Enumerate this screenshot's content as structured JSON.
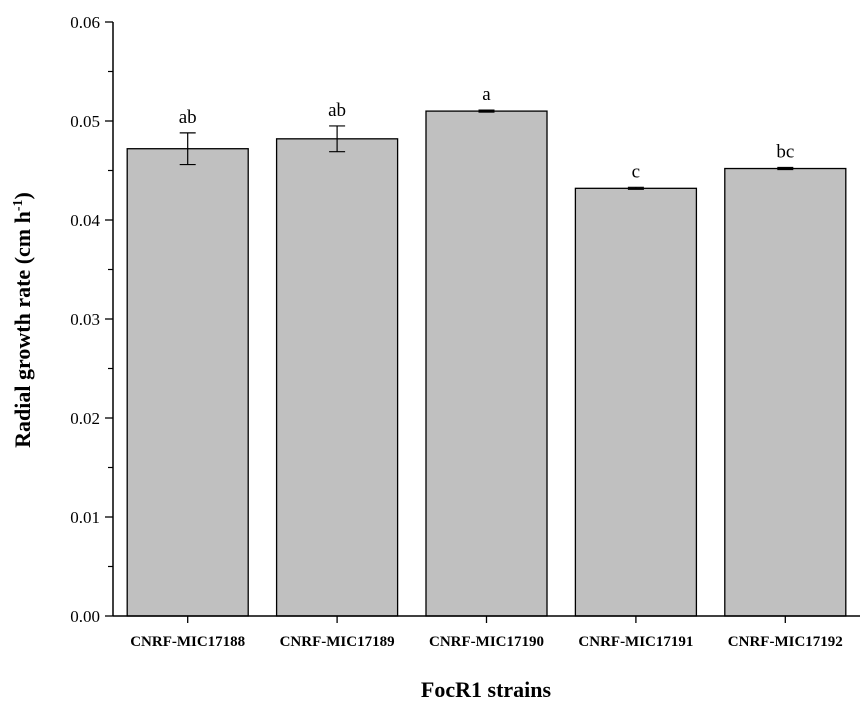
{
  "chart_data": {
    "type": "bar",
    "categories": [
      "CNRF-MIC17188",
      "CNRF-MIC17189",
      "CNRF-MIC17190",
      "CNRF-MIC17191",
      "CNRF-MIC17192"
    ],
    "values": [
      0.0472,
      0.0482,
      0.051,
      0.0432,
      0.0452
    ],
    "errors": [
      0.0016,
      0.0013,
      0.0001,
      0.0001,
      0.0001
    ],
    "significance_labels": [
      "ab",
      "ab",
      "a",
      "c",
      "bc"
    ],
    "xlabel": "FocR1 strains",
    "ylabel": "Radial growth rate (cm h",
    "ylabel_superscript": "-1",
    "ylabel_suffix": ")",
    "ylim": [
      0,
      0.06
    ],
    "yticks": [
      "0.00",
      "0.01",
      "0.02",
      "0.03",
      "0.04",
      "0.05",
      "0.06"
    ],
    "bar_color": "#c0c0c0",
    "grid": false,
    "legend": "none"
  }
}
